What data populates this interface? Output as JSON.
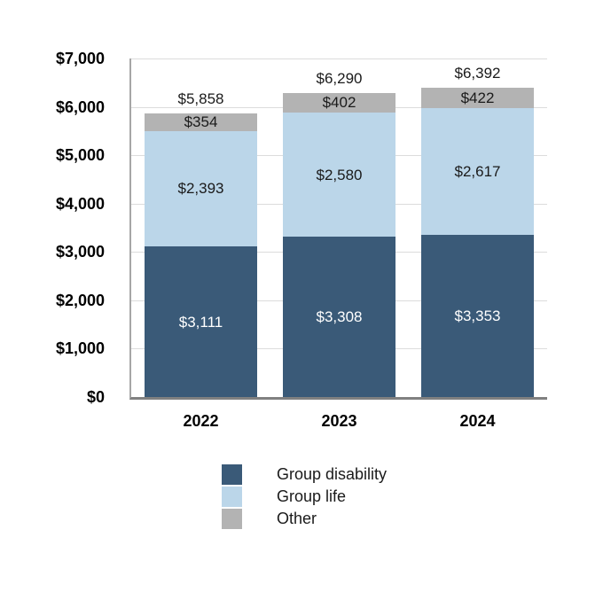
{
  "chart": {
    "background": "#FFFFFF"
  },
  "colors": {
    "group_disability": "#3A5A78",
    "group_life": "#BBD6E9",
    "other": "#B3B3B3",
    "gridline": "#DCDCDC",
    "y_axis_line": "#A6A6A6",
    "x_axis_line": "#808080",
    "text": "#000000",
    "label_dark": "#1A1A1A",
    "label_light": "#FFFFFF"
  },
  "chart_data": {
    "type": "bar",
    "stacked": true,
    "title": "",
    "xlabel": "",
    "ylabel": "",
    "categories": [
      "2022",
      "2023",
      "2024"
    ],
    "series": [
      {
        "name": "Group disability",
        "values": [
          3111,
          3308,
          3353
        ],
        "labels": [
          "$3,111",
          "$3,308",
          "$3,353"
        ],
        "color": "#3A5A78",
        "label_color": "#FFFFFF"
      },
      {
        "name": "Group life",
        "values": [
          2393,
          2580,
          2617
        ],
        "labels": [
          "$2,393",
          "$2,580",
          "$2,617"
        ],
        "color": "#BBD6E9",
        "label_color": "#1A1A1A"
      },
      {
        "name": "Other",
        "values": [
          354,
          402,
          422
        ],
        "labels": [
          "$354",
          "$402",
          "$422"
        ],
        "color": "#B3B3B3",
        "label_color": "#1A1A1A"
      }
    ],
    "totals": {
      "values": [
        5858,
        6290,
        6392
      ],
      "labels": [
        "$5,858",
        "$6,290",
        "$6,392"
      ]
    },
    "ylim": [
      0,
      7000
    ],
    "ytick_interval": 1000,
    "ytick_labels": [
      "$0",
      "$1,000",
      "$2,000",
      "$3,000",
      "$4,000",
      "$5,000",
      "$6,000",
      "$7,000"
    ],
    "grid": true,
    "legend_position": "bottom-left"
  }
}
